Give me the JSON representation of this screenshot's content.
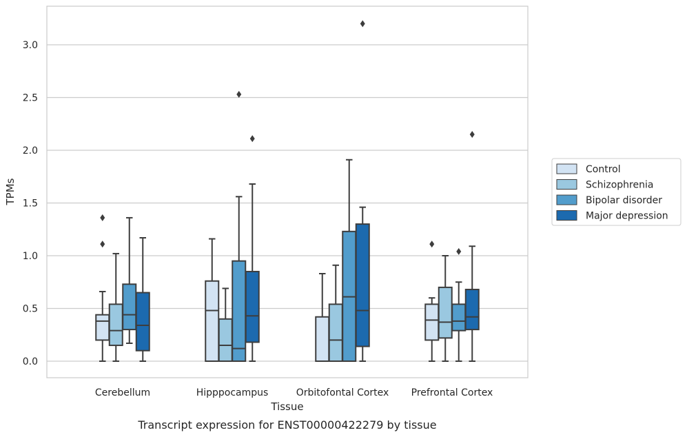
{
  "chart_data": {
    "type": "box",
    "title": "",
    "caption": "Transcript expression for ENST00000422279 by tissue",
    "xlabel": "Tissue",
    "ylabel": "TPMs",
    "ylim": [
      -0.15,
      3.35
    ],
    "yticks": [
      0.0,
      0.5,
      1.0,
      1.5,
      2.0,
      2.5,
      3.0
    ],
    "ytick_labels": [
      "0.0",
      "0.5",
      "1.0",
      "1.5",
      "2.0",
      "2.5",
      "3.0"
    ],
    "grid": "horizontal",
    "legend_position": "right-outside",
    "categories": [
      "Cerebellum",
      "Hipppocampus",
      "Orbitofontal Cortex",
      "Prefrontal Cortex"
    ],
    "series": [
      {
        "name": "Control",
        "color": "#d2e3f3",
        "boxes": [
          {
            "whislo": 0.0,
            "q1": 0.2,
            "med": 0.38,
            "q3": 0.44,
            "whishi": 0.66,
            "fliers": [
              1.11,
              1.36
            ]
          },
          {
            "whislo": 0.0,
            "q1": 0.0,
            "med": 0.48,
            "q3": 0.76,
            "whishi": 1.16,
            "fliers": []
          },
          {
            "whislo": 0.0,
            "q1": 0.0,
            "med": 0.0,
            "q3": 0.42,
            "whishi": 0.83,
            "fliers": []
          },
          {
            "whislo": 0.0,
            "q1": 0.2,
            "med": 0.39,
            "q3": 0.54,
            "whishi": 0.6,
            "fliers": [
              1.11
            ]
          }
        ]
      },
      {
        "name": "Schizophrenia",
        "color": "#9ac8e0",
        "boxes": [
          {
            "whislo": 0.0,
            "q1": 0.15,
            "med": 0.29,
            "q3": 0.54,
            "whishi": 1.02,
            "fliers": []
          },
          {
            "whislo": 0.0,
            "q1": 0.0,
            "med": 0.15,
            "q3": 0.4,
            "whishi": 0.69,
            "fliers": []
          },
          {
            "whislo": 0.0,
            "q1": 0.0,
            "med": 0.2,
            "q3": 0.54,
            "whishi": 0.91,
            "fliers": []
          },
          {
            "whislo": 0.0,
            "q1": 0.22,
            "med": 0.37,
            "q3": 0.7,
            "whishi": 1.0,
            "fliers": []
          }
        ]
      },
      {
        "name": "Bipolar disorder",
        "color": "#529dcc",
        "boxes": [
          {
            "whislo": 0.17,
            "q1": 0.3,
            "med": 0.44,
            "q3": 0.73,
            "whishi": 1.36,
            "fliers": []
          },
          {
            "whislo": 0.0,
            "q1": 0.0,
            "med": 0.12,
            "q3": 0.95,
            "whishi": 1.56,
            "fliers": [
              2.53
            ]
          },
          {
            "whislo": 0.0,
            "q1": 0.0,
            "med": 0.61,
            "q3": 1.23,
            "whishi": 1.91,
            "fliers": []
          },
          {
            "whislo": 0.0,
            "q1": 0.29,
            "med": 0.38,
            "q3": 0.54,
            "whishi": 0.75,
            "fliers": [
              1.04
            ]
          }
        ]
      },
      {
        "name": "Major depression",
        "color": "#1c6aaf",
        "boxes": [
          {
            "whislo": 0.0,
            "q1": 0.1,
            "med": 0.34,
            "q3": 0.65,
            "whishi": 1.17,
            "fliers": []
          },
          {
            "whislo": 0.0,
            "q1": 0.18,
            "med": 0.43,
            "q3": 0.85,
            "whishi": 1.68,
            "fliers": [
              2.11
            ]
          },
          {
            "whislo": 0.0,
            "q1": 0.14,
            "med": 0.48,
            "q3": 1.3,
            "whishi": 1.46,
            "fliers": [
              3.2
            ]
          },
          {
            "whislo": 0.0,
            "q1": 0.3,
            "med": 0.42,
            "q3": 0.68,
            "whishi": 1.09,
            "fliers": [
              2.15
            ]
          }
        ]
      }
    ]
  }
}
